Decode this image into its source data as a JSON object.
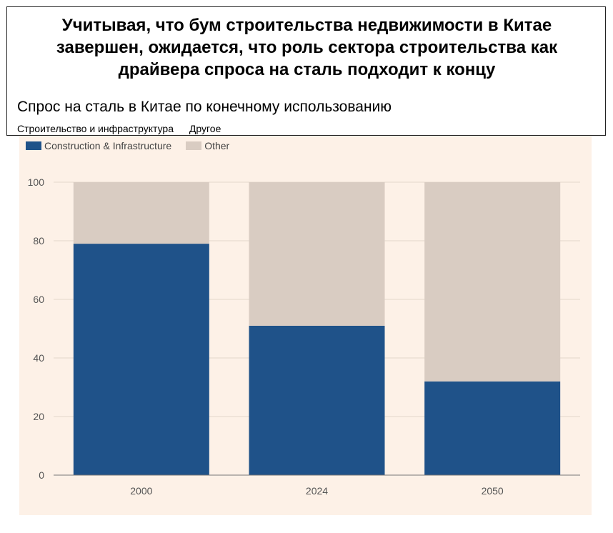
{
  "header": {
    "headline_lines": [
      "Учитывая, что бум строительства  недвижимости  в Китае",
      "завершен, ожидается, что роль сектора строительства  как",
      "драйвера спроса на сталь подходит  к концу"
    ],
    "subtitle": "Спрос на сталь в Китае по конечному использованию",
    "ru_legend": [
      "Строительство и инфраструктура",
      "Другое"
    ]
  },
  "chart_data": {
    "type": "bar",
    "stacked": true,
    "categories": [
      "2000",
      "2024",
      "2050"
    ],
    "series": [
      {
        "name": "Construction & Infrastructure",
        "values": [
          79,
          51,
          32
        ],
        "color": "#1f5289"
      },
      {
        "name": "Other",
        "values": [
          21,
          49,
          68
        ],
        "color": "#d9ccc2"
      }
    ],
    "ylim": [
      0,
      100
    ],
    "yticks": [
      "0",
      "20",
      "40",
      "60",
      "80",
      "100"
    ],
    "grid": true,
    "legend_position": "top-left",
    "background": "#fdf1e7"
  }
}
